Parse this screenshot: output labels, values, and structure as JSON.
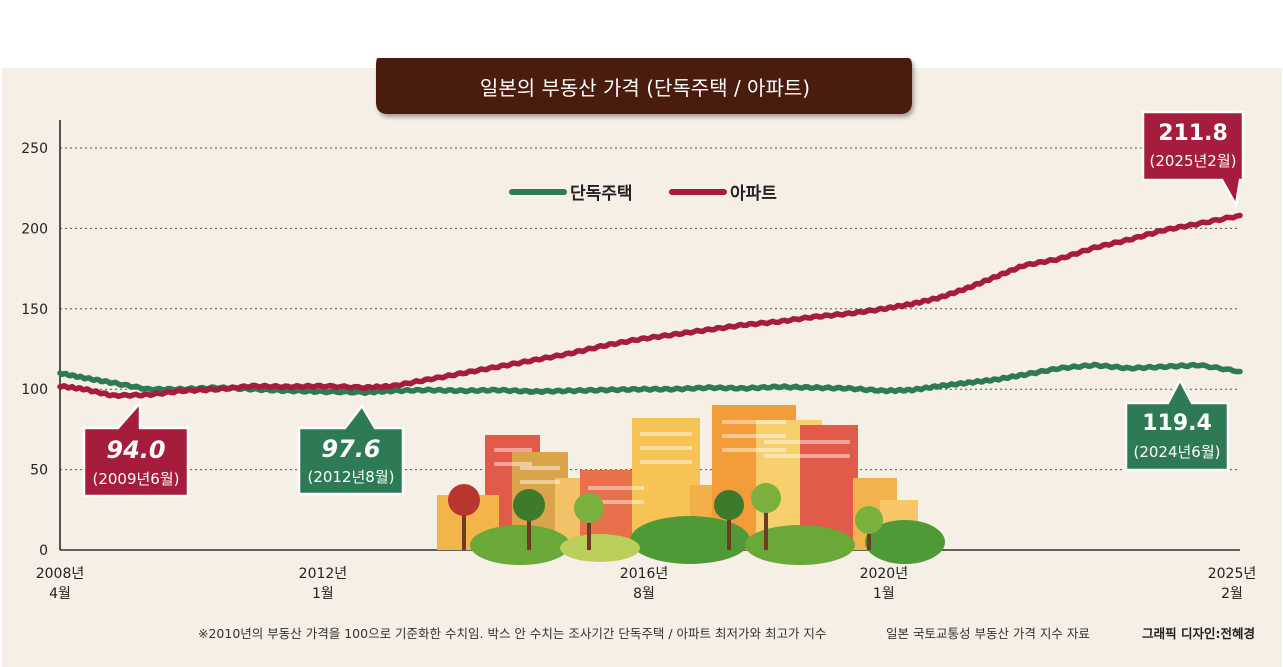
{
  "title": "일본의 부동산 가격 (단독주택 / 아파트)",
  "footnote": "※2010년의 부동산 가격을 100으로 기준화한 수치임. 박스 안 수치는 조사기간 단독주택 / 아파트 최저가와 최고가 지수",
  "source": "일본 국토교통성 부동산 가격 지수 자료",
  "credit": "그래픽 디자인:전혜경",
  "colors": {
    "house": "#2e7a55",
    "apartment": "#a51c3c",
    "title_bg": "#4a1e10"
  },
  "chart_data": {
    "type": "line",
    "ylim": [
      0,
      270
    ],
    "yticks": [
      0,
      50,
      100,
      150,
      200,
      250
    ],
    "grid": true,
    "legend_position": "top-center",
    "xticks": [
      {
        "year": "2008년",
        "month": "4월",
        "t": 2008.25
      },
      {
        "year": "2012년",
        "month": "1월",
        "t": 2012.0
      },
      {
        "year": "2016년",
        "month": "8월",
        "t": 2016.58
      },
      {
        "year": "2020년",
        "month": "1월",
        "t": 2020.0
      },
      {
        "year": "2025년",
        "month": "2월",
        "t": 2025.08
      }
    ],
    "series": [
      {
        "name": "단독주택",
        "color": "#2e7a55",
        "x": [
          2008.25,
          2008.6,
          2009.0,
          2009.5,
          2010.0,
          2010.5,
          2011.0,
          2011.5,
          2012.0,
          2012.6,
          2013.0,
          2013.5,
          2014.0,
          2014.5,
          2015.0,
          2015.5,
          2016.0,
          2016.5,
          2017.0,
          2017.5,
          2018.0,
          2018.5,
          2019.0,
          2019.5,
          2020.0,
          2020.4,
          2020.8,
          2021.2,
          2021.6,
          2022.0,
          2022.5,
          2023.0,
          2023.5,
          2024.0,
          2024.5,
          2025.08
        ],
        "values": [
          110,
          107,
          104,
          100,
          100,
          101,
          100,
          99,
          98.5,
          98,
          99,
          99.5,
          99,
          99.5,
          98.5,
          99,
          99.5,
          100,
          100,
          101,
          100.5,
          101.5,
          101,
          100.5,
          99,
          99.5,
          102,
          104,
          106,
          109,
          113,
          115,
          113,
          114,
          115,
          111
        ]
      },
      {
        "name": "아파트",
        "color": "#a51c3c",
        "x": [
          2008.25,
          2008.6,
          2009.0,
          2009.5,
          2010.0,
          2010.5,
          2011.0,
          2011.5,
          2012.0,
          2012.6,
          2013.0,
          2013.5,
          2014.0,
          2014.5,
          2015.0,
          2015.5,
          2016.0,
          2016.5,
          2017.0,
          2017.5,
          2018.0,
          2018.5,
          2019.0,
          2019.5,
          2020.0,
          2020.4,
          2020.8,
          2021.2,
          2021.6,
          2022.0,
          2022.5,
          2023.0,
          2023.5,
          2024.0,
          2024.5,
          2025.08
        ],
        "values": [
          102,
          100,
          96,
          96.5,
          99,
          100,
          102,
          101.5,
          102,
          101,
          102,
          106,
          110,
          114,
          118,
          122,
          127,
          131,
          134,
          137,
          140,
          142,
          145,
          147,
          150,
          153,
          157,
          163,
          170,
          177,
          181,
          188,
          193,
          199,
          203,
          208
        ]
      }
    ],
    "annotations": [
      {
        "series": "아파트",
        "label": "94.0",
        "sublabel": "(2009년6월)",
        "t": 2009.42,
        "value": 94.0
      },
      {
        "series": "단독주택",
        "label": "97.6",
        "sublabel": "(2012년8월)",
        "t": 2012.6,
        "value": 97.6
      },
      {
        "series": "단독주택",
        "label": "119.4",
        "sublabel": "(2024년6월)",
        "t": 2024.42,
        "value": 119.4
      },
      {
        "series": "아파트",
        "label": "211.8",
        "sublabel": "(2025년2월)",
        "t": 2025.08,
        "value": 211.8
      }
    ]
  }
}
